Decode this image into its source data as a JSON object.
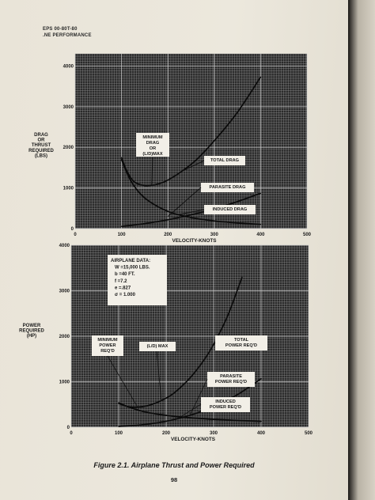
{
  "header": {
    "line1": "EPS 00-80T-80",
    "line2": ".NE PERFORMANCE"
  },
  "caption": "Figure 2.1. Airplane Thrust and Power Required",
  "page_number": "98",
  "colors": {
    "grid_bg": "#2b2b2b",
    "grid_line": "#9a9a9a",
    "curve": "#0a0a0a",
    "label_box": "#f2efe7"
  },
  "chart_data": [
    {
      "type": "line",
      "title": "",
      "xlabel": "VELOCITY-KNOTS",
      "ylabel": "DRAG\nOR\nTHRUST\nREQUIRED\n(LBS)",
      "xlim": [
        0,
        500
      ],
      "ylim": [
        0,
        4300
      ],
      "x_ticks": [
        "0",
        "100",
        "200",
        "300",
        "400",
        "500"
      ],
      "y_ticks": [
        "0",
        "1000",
        "2000",
        "3000",
        "4000"
      ],
      "series": [
        {
          "name": "TOTAL DRAG",
          "x": [
            100,
            110,
            120,
            130,
            150,
            170,
            190,
            210,
            230,
            260,
            300,
            350,
            400
          ],
          "y": [
            1750,
            1450,
            1250,
            1130,
            1060,
            1075,
            1140,
            1260,
            1410,
            1680,
            2160,
            2860,
            3730
          ]
        },
        {
          "name": "PARASITE DRAG",
          "x": [
            100,
            150,
            200,
            250,
            300,
            350,
            400
          ],
          "y": [
            54,
            122,
            217,
            339,
            489,
            665,
            869
          ]
        },
        {
          "name": "INDUCED DRAG",
          "x": [
            100,
            120,
            150,
            200,
            250,
            300,
            350,
            400
          ],
          "y": [
            1700,
            1180,
            755,
            425,
            272,
            189,
            139,
            106
          ]
        }
      ],
      "annotations": [
        "MINIMUM\nDRAG\nOR\n(L/D)MAX"
      ]
    },
    {
      "type": "line",
      "title": "",
      "xlabel": "VELOCITY-KNOTS",
      "ylabel": "POWER\nREQUIRED\n(HP)",
      "xlim": [
        0,
        500
      ],
      "ylim": [
        0,
        4000
      ],
      "x_ticks": [
        "0",
        "100",
        "200",
        "300",
        "400",
        "500"
      ],
      "y_ticks": [
        "0",
        "1000",
        "2000",
        "3000",
        "4000"
      ],
      "series": [
        {
          "name": "TOTAL POWER REQ'D",
          "x": [
            100,
            120,
            140,
            160,
            180,
            200,
            220,
            250,
            280,
            300,
            330,
            360
          ],
          "y": [
            540,
            450,
            440,
            470,
            540,
            640,
            780,
            1080,
            1480,
            1820,
            2460,
            3300
          ]
        },
        {
          "name": "PARASITE POWER REQ'D",
          "x": [
            100,
            150,
            200,
            250,
            300,
            350,
            400
          ],
          "y": [
            17,
            56,
            133,
            260,
            450,
            714,
            1066
          ]
        },
        {
          "name": "INDUCED POWER REQ'D",
          "x": [
            100,
            150,
            200,
            250,
            300,
            350,
            400
          ],
          "y": [
            520,
            350,
            260,
            208,
            174,
            149,
            130
          ]
        }
      ],
      "annotations": [
        "AIRPLANE DATA:",
        "W =15,000 LBS.",
        "b =40 FT.",
        "f =7.2",
        "e =.827",
        "σ = 1.000",
        "MINIMUM\nPOWER\nREQ'D",
        "(L/D) MAX"
      ]
    }
  ]
}
